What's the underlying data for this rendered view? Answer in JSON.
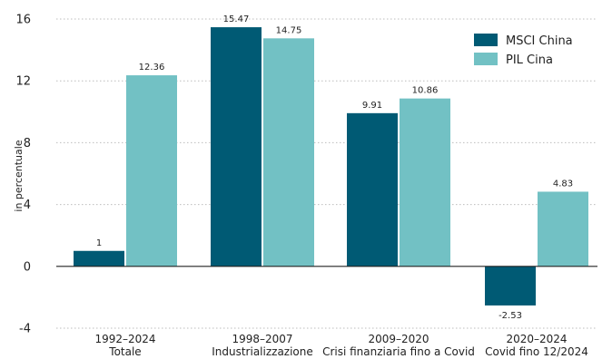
{
  "chart_data": {
    "type": "bar",
    "ylabel": "in percentuale",
    "ylim": [
      -4,
      16
    ],
    "yticks": [
      -4,
      0,
      4,
      8,
      12,
      16
    ],
    "grid": true,
    "legend_position": "top-right",
    "categories": [
      {
        "line1": "1992–2024",
        "line2": "Totale"
      },
      {
        "line1": "1998–2007",
        "line2": "Industrializzazione"
      },
      {
        "line1": "2009–2020",
        "line2": "Crisi finanziaria fino a Covid"
      },
      {
        "line1": "2020–2024",
        "line2": "Covid fino 12/2024"
      }
    ],
    "series": [
      {
        "name": "MSCI China",
        "color": "#005a74",
        "values": [
          1,
          15.47,
          9.91,
          -2.53
        ],
        "labels": [
          "1",
          "15.47",
          "9.91",
          "-2.53"
        ]
      },
      {
        "name": "PIL Cina",
        "color": "#72c1c4",
        "values": [
          12.36,
          14.75,
          10.86,
          4.83
        ],
        "labels": [
          "12.36",
          "14.75",
          "10.86",
          "4.83"
        ]
      }
    ]
  }
}
